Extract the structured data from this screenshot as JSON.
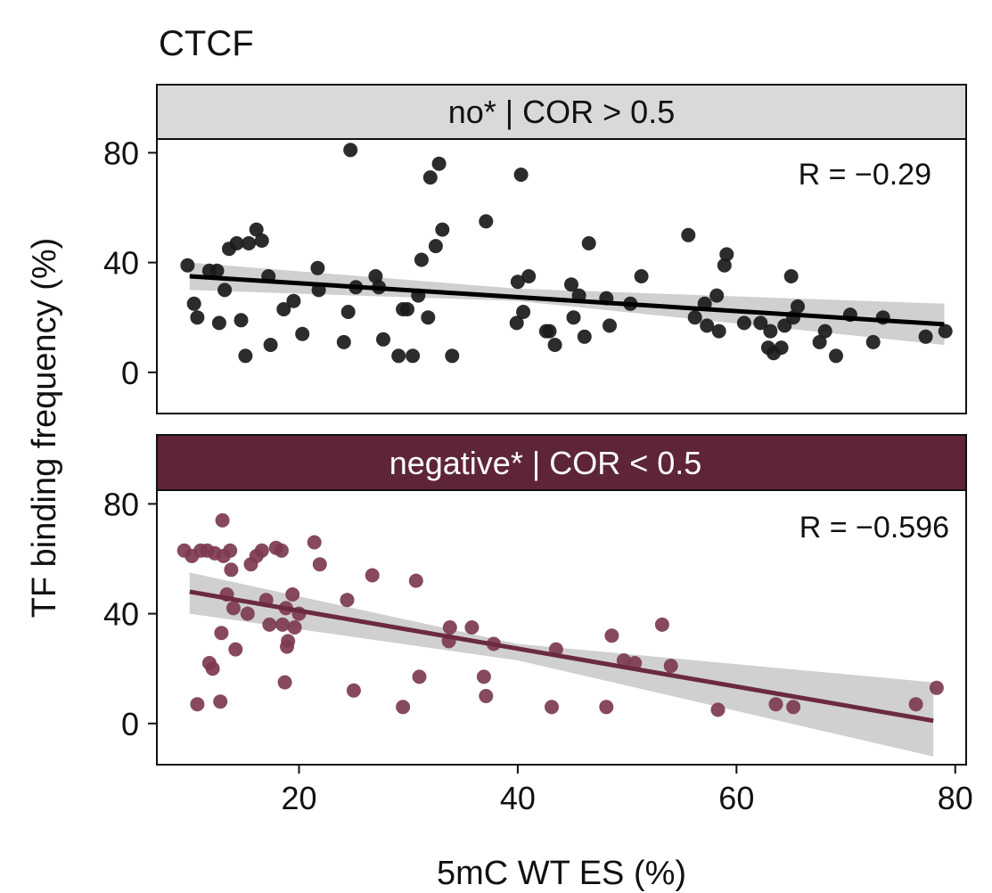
{
  "figure": {
    "title": "CTCF",
    "xlabel": "5mC WT ES (%)",
    "ylabel": "TF binding frequency (%)"
  },
  "colors": {
    "panel1_strip": "#d9d9d9",
    "panel1_points": "#1a1a1a",
    "panel1_line": "#000000",
    "panel2_strip": "#5e2539",
    "panel2_points": "#7d3a50",
    "panel2_line": "#6b2a40",
    "ribbon": "#c8c8c8",
    "axis": "#111111"
  },
  "chart_data": [
    {
      "type": "scatter",
      "strip_label": "no* | COR > 0.5",
      "annotation": "R = −0.29",
      "xlim": [
        7,
        81
      ],
      "ylim": [
        -15,
        85
      ],
      "xticks": [
        20,
        40,
        60,
        80
      ],
      "xtick_labels": [
        "20",
        "40",
        "60",
        "80"
      ],
      "yticks": [
        0,
        40,
        80
      ],
      "ytick_labels": [
        "0",
        "40",
        "80"
      ],
      "fit": {
        "x": [
          10,
          79
        ],
        "y": [
          35,
          17.5
        ]
      },
      "ribbon": {
        "x": [
          10,
          40,
          79
        ],
        "lower": [
          30,
          26,
          10
        ],
        "upper": [
          40,
          30.5,
          25
        ]
      },
      "x": [
        9.8,
        10.4,
        10.7,
        11.8,
        12.5,
        12.7,
        13.2,
        13.6,
        14.3,
        14.7,
        15.1,
        15.4,
        16.1,
        16.6,
        17.2,
        17.4,
        18.6,
        19.5,
        20.3,
        21.7,
        21.8,
        24.1,
        24.5,
        24.7,
        25.2,
        27.0,
        27.3,
        27.7,
        29.1,
        29.5,
        29.9,
        30.4,
        30.9,
        31.2,
        31.8,
        32.0,
        32.5,
        32.8,
        33.1,
        34.0,
        37.1,
        39.9,
        40.0,
        40.3,
        40.5,
        41.0,
        42.6,
        42.9,
        43.4,
        44.9,
        45.1,
        45.6,
        46.1,
        46.5,
        48.1,
        48.4,
        50.3,
        51.3,
        55.6,
        56.2,
        57.1,
        57.3,
        58.2,
        58.4,
        58.9,
        59.1,
        60.7,
        62.2,
        62.9,
        63.1,
        63.4,
        64.1,
        64.4,
        65.0,
        65.2,
        65.6,
        67.6,
        68.1,
        69.1,
        70.4,
        72.5,
        73.4,
        77.3,
        79.1
      ],
      "y": [
        39,
        25,
        20,
        37,
        37,
        18,
        30,
        45,
        47,
        19,
        6,
        47,
        52,
        48,
        35,
        10,
        23,
        26,
        14,
        38,
        30,
        11,
        22,
        81,
        31,
        35,
        31,
        12,
        6,
        23,
        23,
        6,
        28,
        41,
        20,
        71,
        46,
        76,
        52,
        6,
        55,
        18,
        33,
        72,
        22,
        35,
        15,
        15,
        10,
        32,
        20,
        28,
        13,
        47,
        27,
        17,
        25,
        35,
        50,
        20,
        25,
        17,
        28,
        15,
        39,
        43,
        18,
        18,
        9,
        15,
        7,
        9,
        17,
        35,
        20,
        24,
        11,
        15,
        6,
        21,
        11,
        20,
        13,
        15
      ]
    },
    {
      "type": "scatter",
      "strip_label": "negative* | COR < 0.5",
      "annotation": "R = −0.596",
      "xlim": [
        7,
        81
      ],
      "ylim": [
        -15,
        85
      ],
      "xticks": [
        20,
        40,
        60,
        80
      ],
      "xtick_labels": [
        "20",
        "40",
        "60",
        "80"
      ],
      "yticks": [
        0,
        40,
        80
      ],
      "ytick_labels": [
        "0",
        "40",
        "80"
      ],
      "fit": {
        "x": [
          10,
          78
        ],
        "y": [
          48,
          1
        ]
      },
      "ribbon": {
        "x": [
          10,
          40,
          78
        ],
        "lower": [
          40,
          23,
          -12
        ],
        "upper": [
          55,
          29,
          15
        ]
      },
      "x": [
        9.5,
        10.2,
        10.7,
        11.0,
        11.6,
        11.8,
        12.1,
        12.3,
        12.8,
        12.9,
        13.0,
        13.1,
        13.4,
        13.7,
        13.8,
        14.0,
        14.2,
        15.3,
        15.6,
        16.1,
        16.6,
        17.0,
        17.3,
        17.9,
        18.4,
        18.5,
        18.7,
        18.8,
        18.9,
        19.0,
        19.4,
        19.6,
        20.0,
        21.4,
        21.9,
        24.4,
        25.0,
        26.7,
        29.5,
        30.7,
        31.0,
        33.7,
        33.8,
        35.8,
        36.9,
        37.1,
        37.8,
        43.1,
        43.5,
        48.1,
        48.6,
        49.7,
        50.7,
        53.2,
        54.0,
        58.3,
        63.6,
        65.2,
        76.4,
        78.3
      ],
      "y": [
        63,
        61,
        7,
        63,
        63,
        22,
        20,
        62,
        8,
        33,
        74,
        61,
        47,
        63,
        56,
        42,
        27,
        40,
        58,
        61,
        63,
        45,
        36,
        64,
        63,
        36,
        15,
        42,
        28,
        30,
        47,
        35,
        40,
        66,
        58,
        45,
        12,
        54,
        6,
        52,
        17,
        30,
        35,
        35,
        17,
        10,
        29,
        6,
        27,
        6,
        32,
        23,
        22,
        36,
        21,
        5,
        7,
        6,
        7,
        13
      ]
    }
  ]
}
